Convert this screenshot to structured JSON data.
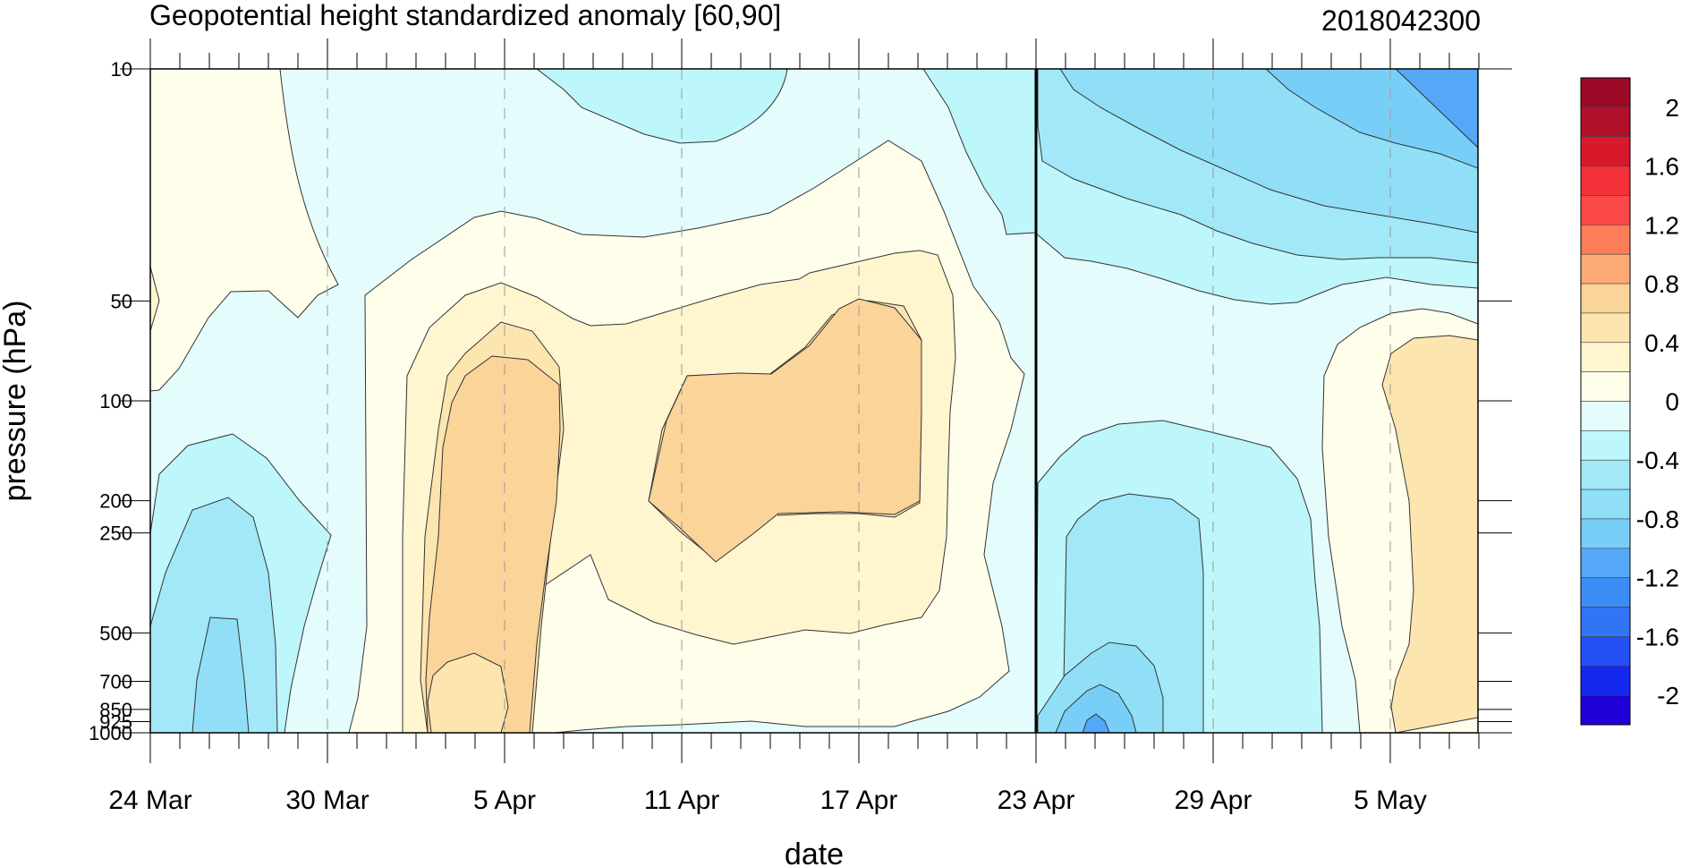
{
  "chart_data": {
    "type": "heatmap",
    "title": "Geopotential height standardized anomaly [60,90]",
    "subtitle_right": "2018042300",
    "xlabel": "date",
    "ylabel": "pressure (hPa)",
    "x_ticks": [
      {
        "day": 0,
        "label": "24 Mar"
      },
      {
        "day": 6,
        "label": "30 Mar"
      },
      {
        "day": 12,
        "label": "5 Apr"
      },
      {
        "day": 18,
        "label": "11 Apr"
      },
      {
        "day": 24,
        "label": "17 Apr"
      },
      {
        "day": 30,
        "label": "23 Apr"
      },
      {
        "day": 36,
        "label": "29 Apr"
      },
      {
        "day": 42,
        "label": "5 May"
      }
    ],
    "x_range_days": [
      0,
      45
    ],
    "y_ticks": [
      {
        "p": 10,
        "label": "10"
      },
      {
        "p": 50,
        "label": "50"
      },
      {
        "p": 100,
        "label": "100"
      },
      {
        "p": 200,
        "label": "200"
      },
      {
        "p": 250,
        "label": "250"
      },
      {
        "p": 500,
        "label": "500"
      },
      {
        "p": 700,
        "label": "700"
      },
      {
        "p": 850,
        "label": "850"
      },
      {
        "p": 925,
        "label": "925"
      },
      {
        "p": 1000,
        "label": "1000"
      }
    ],
    "y_range": [
      1000,
      10
    ],
    "y_scale": "log",
    "analysis_marker_day": 30,
    "grid": "dashed vertical lines at labelled dates",
    "colorbar": {
      "placement": "right",
      "levels": [
        -2.2,
        -2.0,
        -1.8,
        -1.6,
        -1.4,
        -1.2,
        -1.0,
        -0.8,
        -0.6,
        -0.4,
        -0.2,
        0,
        0.2,
        0.4,
        0.6,
        0.8,
        1.0,
        1.2,
        1.4,
        1.6,
        1.8,
        2.0,
        2.2
      ],
      "colors": [
        "#1E00D8",
        "#1429F0",
        "#2550F5",
        "#3175F5",
        "#3C8CF5",
        "#55A8F7",
        "#77CFF8",
        "#90DFF7",
        "#A2E8F8",
        "#BDF6FB",
        "#E4FCFC",
        "#FFFEEB",
        "#FFF6D0",
        "#FDE5B0",
        "#FBD49A",
        "#FDAA75",
        "#FD7C5A",
        "#FB4848",
        "#F23038",
        "#D8192C",
        "#B0102A",
        "#9A0A26"
      ],
      "labels": [
        "-2",
        "-1.6",
        "-1.2",
        "-0.8",
        "-0.4",
        "0",
        "0.4",
        "0.8",
        "1.2",
        "1.6",
        "2"
      ]
    }
  }
}
